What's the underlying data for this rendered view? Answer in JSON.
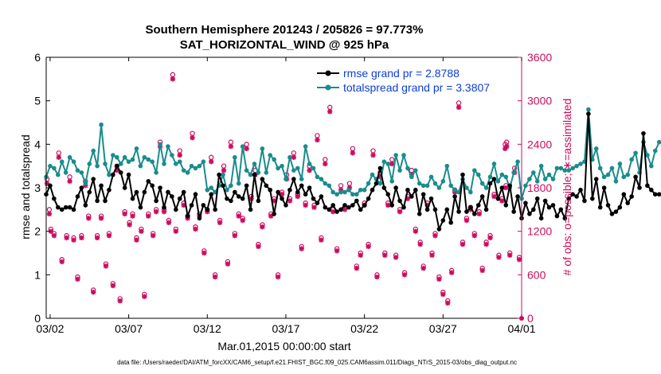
{
  "colors": {
    "rmse": "#000000",
    "spread": "#1a8c8c",
    "obs": "#cc0c5e",
    "legend_text": "#0b3ed6"
  },
  "chart_data": {
    "type": "line",
    "title_line1": "Southern Hemisphere 201243 / 205826 = 97.773%",
    "title_line2": "SAT_HORIZONTAL_WIND @ 925 hPa",
    "xlabel": "Mar.01,2015 00:00:00 start",
    "ylabel_left": "rmse and totalspread",
    "ylabel_right": "# of obs: o=possible; ∗=assimilated",
    "xlim": [
      0.75,
      31.0
    ],
    "ylim_left": [
      0,
      6
    ],
    "ylim_right": [
      0,
      3600
    ],
    "x_ticks": [
      {
        "x": 1,
        "label": "03/02"
      },
      {
        "x": 6,
        "label": "03/07"
      },
      {
        "x": 11,
        "label": "03/12"
      },
      {
        "x": 16,
        "label": "03/17"
      },
      {
        "x": 21,
        "label": "03/22"
      },
      {
        "x": 26,
        "label": "03/27"
      },
      {
        "x": 31,
        "label": "04/01"
      }
    ],
    "y_ticks_left": [
      "0",
      "1",
      "2",
      "3",
      "4",
      "5",
      "6"
    ],
    "y_ticks_left_values": [
      0,
      1,
      2,
      3,
      4,
      5,
      6
    ],
    "y_ticks_right": [
      "0",
      "600",
      "1200",
      "1800",
      "2400",
      "3000",
      "3600"
    ],
    "y_ticks_right_values": [
      0,
      600,
      1200,
      1800,
      2400,
      3000,
      3600
    ],
    "legend": {
      "rmse": "rmse grand pr = 2.8788",
      "spread": "totalspread grand pr = 3.3807"
    },
    "footnote": "data file: /Users/raeder/DAI/ATM_forcXX/CAM6_setup/f.e21.FHIST_BGC.f09_025.CAM6assim.011/Diags_NTrS_2015-03/obs_diag_output.nc",
    "x_start": 0.75,
    "x_step": 0.25,
    "series": [
      {
        "name": "rmse",
        "values": [
          2.85,
          3.05,
          2.75,
          2.55,
          2.5,
          2.55,
          2.55,
          2.5,
          2.8,
          3.0,
          2.6,
          2.9,
          3.2,
          2.7,
          3.05,
          2.7,
          2.95,
          3.3,
          3.5,
          3.35,
          3.0,
          3.3,
          2.75,
          2.9,
          2.55,
          2.9,
          3.15,
          3.05,
          2.7,
          3.0,
          2.55,
          2.9,
          2.8,
          2.5,
          2.75,
          2.9,
          2.35,
          2.6,
          2.85,
          2.3,
          2.6,
          2.5,
          2.85,
          2.5,
          3.3,
          3.05,
          2.75,
          2.7,
          2.9,
          2.8,
          2.75,
          3.05,
          2.5,
          3.3,
          2.7,
          3.2,
          3.05,
          2.95,
          2.4,
          2.9,
          2.75,
          2.6,
          2.95,
          3.2,
          2.9,
          3.05,
          2.85,
          3.0,
          2.75,
          2.65,
          2.8,
          2.55,
          2.5,
          2.6,
          2.45,
          2.5,
          2.6,
          2.55,
          2.6,
          2.7,
          2.5,
          2.6,
          2.75,
          2.95,
          3.1,
          3.45,
          3.0,
          2.85,
          2.6,
          3.0,
          2.7,
          2.55,
          2.95,
          2.8,
          2.95,
          2.4,
          2.85,
          2.5,
          2.75,
          2.5,
          2.05,
          2.25,
          2.5,
          2.2,
          2.8,
          2.45,
          3.3,
          2.45,
          2.55,
          2.4,
          2.6,
          2.8,
          2.5,
          3.1,
          3.2,
          2.75,
          3.0,
          2.6,
          3.05,
          2.45,
          2.8,
          2.3,
          2.65,
          2.4,
          2.5,
          2.75,
          2.3,
          2.7,
          2.55,
          2.6,
          2.35,
          2.5,
          2.3,
          2.75,
          2.85,
          2.8,
          2.95,
          2.7,
          4.7,
          2.75,
          3.2,
          2.55,
          3.0,
          2.6,
          2.4,
          2.45,
          2.55,
          2.85,
          2.65,
          2.8,
          3.25,
          3.0,
          4.25,
          3.05,
          2.95,
          2.85,
          2.85
        ]
      },
      {
        "name": "totalspread",
        "values": [
          3.25,
          3.5,
          3.45,
          3.3,
          3.6,
          3.35,
          3.7,
          3.6,
          3.4,
          3.35,
          3.1,
          3.55,
          3.85,
          3.5,
          4.45,
          3.55,
          3.3,
          3.75,
          3.7,
          3.55,
          3.7,
          3.6,
          3.65,
          3.9,
          3.5,
          3.7,
          3.65,
          3.6,
          3.35,
          4.0,
          3.55,
          3.95,
          3.75,
          3.55,
          3.6,
          3.4,
          3.35,
          3.5,
          3.45,
          3.5,
          3.6,
          2.95,
          3.0,
          2.9,
          3.05,
          3.3,
          2.95,
          3.05,
          3.7,
          3.1,
          3.95,
          3.4,
          3.3,
          3.55,
          3.35,
          3.9,
          3.35,
          3.75,
          3.65,
          3.45,
          3.5,
          3.2,
          3.7,
          3.4,
          3.45,
          3.2,
          3.95,
          3.55,
          3.45,
          3.25,
          3.2,
          3.1,
          3.05,
          2.9,
          2.85,
          2.9,
          2.9,
          2.95,
          2.85,
          2.85,
          2.95,
          2.95,
          3.1,
          3.3,
          3.2,
          3.1,
          3.6,
          3.55,
          3.15,
          3.75,
          3.4,
          3.75,
          3.45,
          3.25,
          3.4,
          3.1,
          3.05,
          3.05,
          3.25,
          3.1,
          3.0,
          3.15,
          3.5,
          3.05,
          2.95,
          2.9,
          3.2,
          3.0,
          2.9,
          3.4,
          3.3,
          3.1,
          3.0,
          3.25,
          3.55,
          3.15,
          3.3,
          3.25,
          3.0,
          3.35,
          3.6,
          2.75,
          3.05,
          3.2,
          3.35,
          3.15,
          3.5,
          3.2,
          3.3,
          3.2,
          3.45,
          3.45,
          3.4,
          3.4,
          3.45,
          3.5,
          3.55,
          3.6,
          4.8,
          3.65,
          3.9,
          3.45,
          3.25,
          3.3,
          3.45,
          3.15,
          3.55,
          3.25,
          3.3,
          3.65,
          3.8,
          3.35,
          4.05,
          3.75,
          3.5,
          3.85,
          4.05
        ]
      }
    ],
    "obs_possible": [
      [
        0.8,
        3.2
      ],
      [
        0.95,
        2.5
      ],
      [
        1.05,
        2.05
      ],
      [
        1.25,
        1.95
      ],
      [
        1.55,
        3.8
      ],
      [
        1.75,
        1.35
      ],
      [
        2.05,
        1.9
      ],
      [
        2.25,
        3.25
      ],
      [
        2.5,
        1.85
      ],
      [
        2.75,
        0.95
      ],
      [
        3.0,
        1.9
      ],
      [
        3.25,
        3.15
      ],
      [
        3.45,
        2.35
      ],
      [
        3.75,
        0.65
      ],
      [
        4.0,
        1.9
      ],
      [
        4.25,
        2.35
      ],
      [
        4.55,
        1.25
      ],
      [
        4.75,
        1.95
      ],
      [
        5.0,
        0.8
      ],
      [
        5.25,
        3.5
      ],
      [
        5.45,
        0.45
      ],
      [
        5.75,
        2.45
      ],
      [
        6.05,
        2.2
      ],
      [
        6.25,
        2.4
      ],
      [
        6.5,
        1.85
      ],
      [
        6.8,
        2.05
      ],
      [
        7.0,
        0.55
      ],
      [
        7.25,
        2.4
      ],
      [
        7.55,
        1.95
      ],
      [
        7.75,
        2.5
      ],
      [
        8.0,
        4.05
      ],
      [
        8.25,
        2.5
      ],
      [
        8.55,
        2.25
      ],
      [
        8.8,
        5.6
      ],
      [
        9.0,
        2.05
      ],
      [
        9.25,
        3.85
      ],
      [
        9.5,
        2.65
      ],
      [
        9.75,
        2.35
      ],
      [
        10.05,
        4.25
      ],
      [
        10.25,
        2.1
      ],
      [
        10.5,
        2.4
      ],
      [
        10.8,
        1.55
      ],
      [
        11.0,
        2.5
      ],
      [
        11.25,
        3.7
      ],
      [
        11.5,
        1.0
      ],
      [
        11.8,
        2.25
      ],
      [
        12.05,
        3.5
      ],
      [
        12.3,
        1.3
      ],
      [
        12.5,
        4.05
      ],
      [
        12.75,
        1.95
      ],
      [
        13.0,
        2.4
      ],
      [
        13.25,
        2.3
      ],
      [
        13.5,
        4.0
      ],
      [
        13.8,
        2.8
      ],
      [
        14.05,
        3.4
      ],
      [
        14.25,
        1.7
      ],
      [
        14.5,
        2.15
      ],
      [
        15.05,
        2.4
      ],
      [
        15.25,
        2.75
      ],
      [
        15.5,
        1.0
      ],
      [
        15.75,
        2.9
      ],
      [
        16.05,
        3.3
      ],
      [
        16.25,
        2.75
      ],
      [
        16.5,
        3.8
      ],
      [
        16.75,
        2.85
      ],
      [
        17.0,
        1.65
      ],
      [
        17.25,
        2.65
      ],
      [
        17.5,
        3.5
      ],
      [
        17.8,
        2.6
      ],
      [
        18.0,
        4.2
      ],
      [
        18.25,
        1.85
      ],
      [
        18.5,
        3.65
      ],
      [
        18.8,
        4.85
      ],
      [
        19.0,
        2.5
      ],
      [
        19.25,
        1.6
      ],
      [
        19.5,
        3.05
      ],
      [
        19.75,
        2.55
      ],
      [
        20.05,
        3.1
      ],
      [
        20.25,
        3.9
      ],
      [
        20.5,
        1.2
      ],
      [
        20.75,
        1.5
      ],
      [
        21.0,
        2.65
      ],
      [
        21.25,
        1.7
      ],
      [
        21.55,
        3.85
      ],
      [
        21.8,
        1.0
      ],
      [
        22.0,
        3.35
      ],
      [
        22.3,
        1.5
      ],
      [
        22.5,
        2.65
      ],
      [
        22.75,
        3.65
      ],
      [
        23.0,
        1.45
      ],
      [
        23.25,
        2.5
      ],
      [
        23.55,
        1.05
      ],
      [
        23.75,
        2.8
      ],
      [
        24.0,
        3.4
      ],
      [
        24.25,
        2.05
      ],
      [
        24.55,
        1.75
      ],
      [
        24.75,
        1.2
      ],
      [
        25.0,
        2.65
      ],
      [
        25.3,
        1.5
      ],
      [
        25.5,
        1.95
      ],
      [
        25.75,
        0.95
      ],
      [
        26.0,
        0.6
      ],
      [
        26.3,
        0.4
      ],
      [
        26.55,
        1.1
      ],
      [
        26.75,
        2.95
      ],
      [
        27.0,
        4.95
      ],
      [
        27.25,
        1.75
      ],
      [
        27.5,
        2.3
      ],
      [
        27.75,
        2.55
      ],
      [
        28.0,
        1.95
      ],
      [
        28.3,
        2.45
      ],
      [
        28.5,
        1.15
      ],
      [
        28.75,
        1.75
      ],
      [
        29.0,
        1.9
      ],
      [
        29.25,
        2.85
      ],
      [
        29.55,
        1.45
      ],
      [
        29.75,
        2.75
      ],
      [
        30.0,
        3.05
      ],
      [
        30.25,
        1.5
      ],
      [
        30.55,
        3.45
      ],
      [
        30.85,
        1.4
      ],
      [
        30.05,
        4.05
      ],
      [
        29.95,
        4.0
      ]
    ],
    "obs_assimilated": [
      [
        0.8,
        3.1
      ],
      [
        0.95,
        2.4
      ],
      [
        1.05,
        2.0
      ],
      [
        1.25,
        1.9
      ],
      [
        1.55,
        3.7
      ],
      [
        1.75,
        1.3
      ],
      [
        2.05,
        1.85
      ],
      [
        2.25,
        3.15
      ],
      [
        2.5,
        1.8
      ],
      [
        2.75,
        0.9
      ],
      [
        3.0,
        1.85
      ],
      [
        3.25,
        3.05
      ],
      [
        3.45,
        2.3
      ],
      [
        3.75,
        0.6
      ],
      [
        4.0,
        1.85
      ],
      [
        4.25,
        2.3
      ],
      [
        4.55,
        1.2
      ],
      [
        4.75,
        1.9
      ],
      [
        5.0,
        0.75
      ],
      [
        5.25,
        3.4
      ],
      [
        5.45,
        0.4
      ],
      [
        5.75,
        2.4
      ],
      [
        6.05,
        2.15
      ],
      [
        6.25,
        2.35
      ],
      [
        6.5,
        1.8
      ],
      [
        6.8,
        2.0
      ],
      [
        7.0,
        0.5
      ],
      [
        7.25,
        2.35
      ],
      [
        7.55,
        1.9
      ],
      [
        7.75,
        2.45
      ],
      [
        8.0,
        3.95
      ],
      [
        8.25,
        2.45
      ],
      [
        8.55,
        2.2
      ],
      [
        8.8,
        5.5
      ],
      [
        9.0,
        2.0
      ],
      [
        9.25,
        3.75
      ],
      [
        9.5,
        2.6
      ],
      [
        9.75,
        2.3
      ],
      [
        10.05,
        4.15
      ],
      [
        10.25,
        2.05
      ],
      [
        10.5,
        2.35
      ],
      [
        10.8,
        1.5
      ],
      [
        11.0,
        2.45
      ],
      [
        11.25,
        3.6
      ],
      [
        11.5,
        0.95
      ],
      [
        11.8,
        2.2
      ],
      [
        12.05,
        3.4
      ],
      [
        12.3,
        1.25
      ],
      [
        12.5,
        3.95
      ],
      [
        12.75,
        1.9
      ],
      [
        13.0,
        2.35
      ],
      [
        13.25,
        2.25
      ],
      [
        13.5,
        3.9
      ],
      [
        13.8,
        2.75
      ],
      [
        14.05,
        3.3
      ],
      [
        14.25,
        1.65
      ],
      [
        14.5,
        2.1
      ],
      [
        15.05,
        2.35
      ],
      [
        15.25,
        2.7
      ],
      [
        15.5,
        0.95
      ],
      [
        15.75,
        2.85
      ],
      [
        16.05,
        3.2
      ],
      [
        16.25,
        2.7
      ],
      [
        16.5,
        3.7
      ],
      [
        16.75,
        2.8
      ],
      [
        17.0,
        1.6
      ],
      [
        17.25,
        2.6
      ],
      [
        17.5,
        3.4
      ],
      [
        17.8,
        2.55
      ],
      [
        18.0,
        4.1
      ],
      [
        18.25,
        1.8
      ],
      [
        18.5,
        3.55
      ],
      [
        18.8,
        4.75
      ],
      [
        19.0,
        2.45
      ],
      [
        19.25,
        1.55
      ],
      [
        19.5,
        2.95
      ],
      [
        19.75,
        2.5
      ],
      [
        20.05,
        3.0
      ],
      [
        20.25,
        3.8
      ],
      [
        20.5,
        1.15
      ],
      [
        20.75,
        1.45
      ],
      [
        21.0,
        2.6
      ],
      [
        21.25,
        1.65
      ],
      [
        21.55,
        3.75
      ],
      [
        21.8,
        0.95
      ],
      [
        22.0,
        3.25
      ],
      [
        22.3,
        1.45
      ],
      [
        22.5,
        2.6
      ],
      [
        22.75,
        3.55
      ],
      [
        23.0,
        1.4
      ],
      [
        23.25,
        2.45
      ],
      [
        23.55,
        1.0
      ],
      [
        23.75,
        2.75
      ],
      [
        24.0,
        3.3
      ],
      [
        24.25,
        2.0
      ],
      [
        24.55,
        1.7
      ],
      [
        24.75,
        1.15
      ],
      [
        25.0,
        2.6
      ],
      [
        25.3,
        1.45
      ],
      [
        25.5,
        1.9
      ],
      [
        25.75,
        0.9
      ],
      [
        26.0,
        0.55
      ],
      [
        26.3,
        0.35
      ],
      [
        26.55,
        1.05
      ],
      [
        26.75,
        2.9
      ],
      [
        27.0,
        4.85
      ],
      [
        27.25,
        1.7
      ],
      [
        27.5,
        2.25
      ],
      [
        27.75,
        2.5
      ],
      [
        28.0,
        1.9
      ],
      [
        28.3,
        2.4
      ],
      [
        28.5,
        1.1
      ],
      [
        28.75,
        1.7
      ],
      [
        29.0,
        1.85
      ],
      [
        29.25,
        2.8
      ],
      [
        29.55,
        1.4
      ],
      [
        29.75,
        2.7
      ],
      [
        30.0,
        3.0
      ],
      [
        30.25,
        1.45
      ],
      [
        30.55,
        3.35
      ],
      [
        30.85,
        1.35
      ],
      [
        30.05,
        3.95
      ],
      [
        29.95,
        3.9
      ]
    ]
  }
}
